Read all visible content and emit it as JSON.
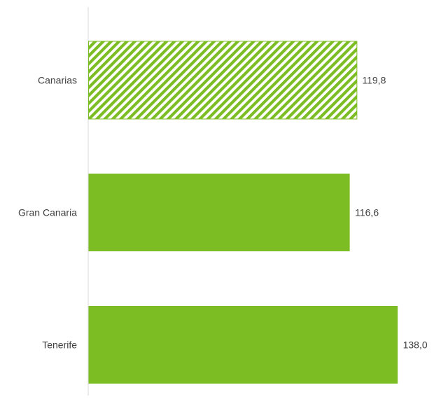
{
  "chart_data": {
    "type": "bar",
    "orientation": "horizontal",
    "categories": [
      "Canarias",
      "Gran Canaria",
      "Tenerife"
    ],
    "values": [
      119.8,
      116.6,
      138.0
    ],
    "value_labels": [
      "119,8",
      "116,6",
      "138,0"
    ],
    "bar_styles": [
      "hatched",
      "solid",
      "solid"
    ],
    "bar_color": "#7cbd23",
    "axis_color": "#d9d9d9",
    "xlim": [
      0,
      145
    ],
    "grid": false,
    "legend": "none",
    "title": "",
    "xlabel": "",
    "ylabel": ""
  }
}
